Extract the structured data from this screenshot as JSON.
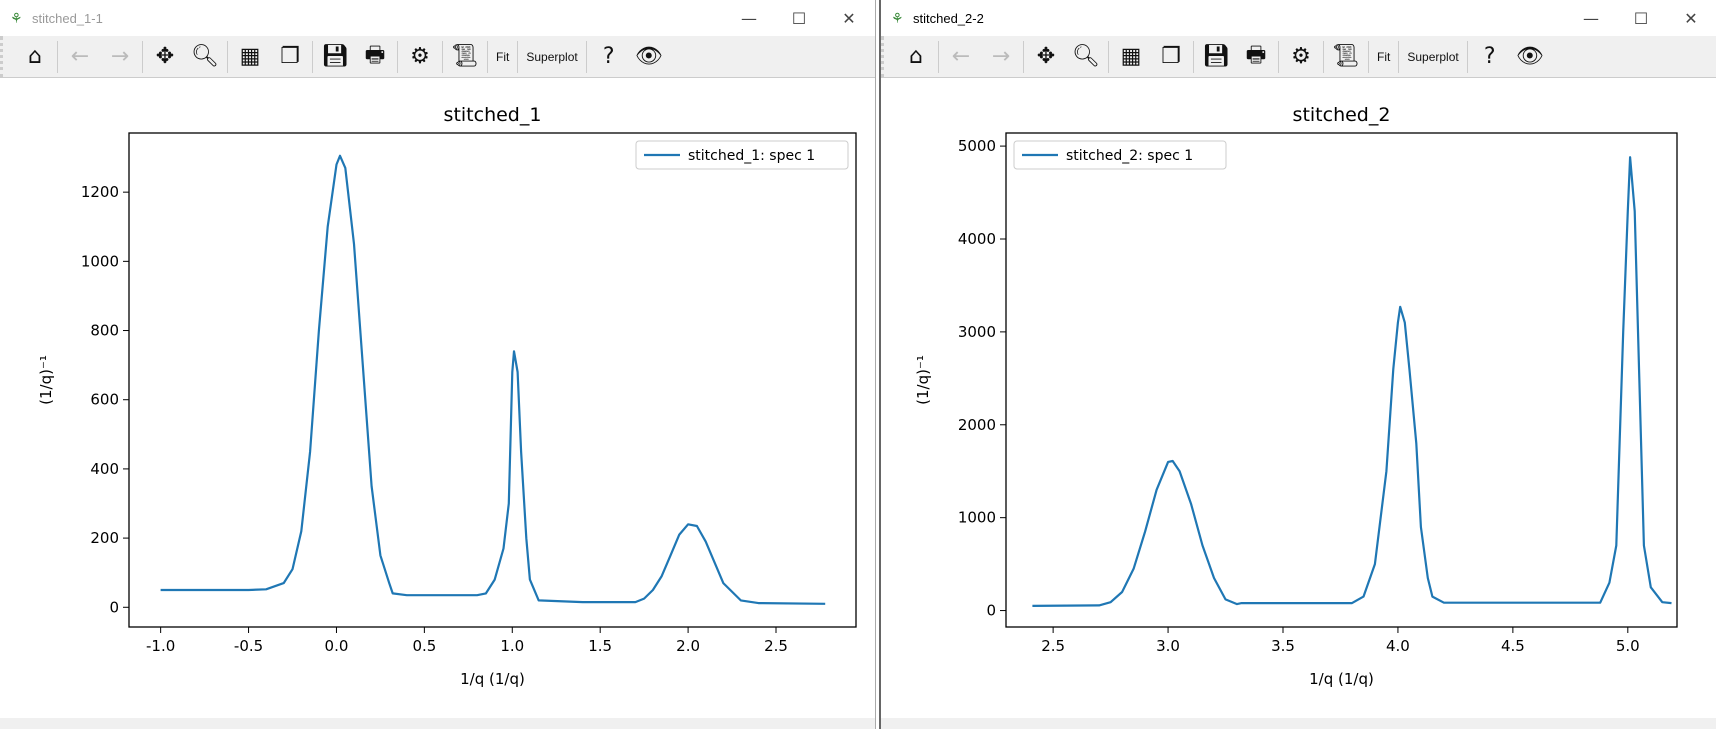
{
  "windows": [
    {
      "title": "stitched_1-1",
      "controls": {
        "minimize": "—",
        "maximize": "☐",
        "close": "✕"
      }
    },
    {
      "title": "stitched_2-2",
      "controls": {
        "minimize": "—",
        "maximize": "☐",
        "close": "✕"
      }
    }
  ],
  "toolbar": {
    "items": [
      {
        "icon": "home-icon",
        "glyph": "⌂"
      },
      {
        "icon": "back-arrow-icon",
        "glyph": "←"
      },
      {
        "icon": "forward-arrow-icon",
        "glyph": "→"
      },
      {
        "icon": "pan-icon",
        "glyph": "✥"
      },
      {
        "icon": "zoom-icon",
        "glyph": "🔍︎"
      },
      {
        "icon": "grid-icon",
        "glyph": "▦"
      },
      {
        "icon": "copy-icon",
        "glyph": "❐"
      },
      {
        "icon": "save-icon",
        "glyph": "💾︎"
      },
      {
        "icon": "print-icon",
        "glyph": "🖶"
      },
      {
        "icon": "settings-gear-icon",
        "glyph": "⚙"
      },
      {
        "icon": "script-dropdown-icon",
        "glyph": "📜︎"
      },
      {
        "label": "Fit"
      },
      {
        "label": "Superplot"
      },
      {
        "icon": "help-icon",
        "glyph": "?"
      },
      {
        "icon": "eye-icon",
        "glyph": "👁︎"
      }
    ]
  },
  "chart_data": [
    {
      "type": "line",
      "title": "stitched_1",
      "xlabel": "1/q (1/q)",
      "ylabel": "(1/q)⁻¹",
      "xlim": [
        -1.18,
        2.955
      ],
      "ylim": [
        -57,
        1371
      ],
      "xticks": [
        "-1.0",
        "-0.5",
        "0.0",
        "0.5",
        "1.0",
        "1.5",
        "2.0",
        "2.5"
      ],
      "yticks": [
        "0",
        "200",
        "400",
        "600",
        "800",
        "1000",
        "1200"
      ],
      "legend": "top-right",
      "grid": false,
      "color": "#1f77b4",
      "series": [
        {
          "name": "stitched_1: spec 1",
          "x": [
            -1.0,
            -0.5,
            -0.4,
            -0.3,
            -0.25,
            -0.2,
            -0.15,
            -0.1,
            -0.05,
            0.0,
            0.02,
            0.05,
            0.1,
            0.15,
            0.2,
            0.25,
            0.3,
            0.32,
            0.4,
            0.8,
            0.85,
            0.9,
            0.95,
            0.98,
            1.0,
            1.01,
            1.03,
            1.05,
            1.08,
            1.1,
            1.15,
            1.4,
            1.7,
            1.75,
            1.8,
            1.85,
            1.9,
            1.95,
            2.0,
            2.05,
            2.1,
            2.15,
            2.2,
            2.3,
            2.4,
            2.78
          ],
          "y": [
            50,
            50,
            52,
            70,
            110,
            220,
            450,
            800,
            1100,
            1280,
            1305,
            1270,
            1050,
            700,
            350,
            150,
            70,
            40,
            35,
            35,
            40,
            80,
            170,
            300,
            680,
            740,
            680,
            450,
            200,
            80,
            20,
            15,
            15,
            25,
            50,
            90,
            150,
            210,
            240,
            235,
            190,
            130,
            70,
            20,
            12,
            10
          ]
        }
      ]
    },
    {
      "type": "line",
      "title": "stitched_2",
      "xlabel": "1/q (1/q)",
      "ylabel": "(1/q)⁻¹",
      "xlim": [
        2.295,
        5.214
      ],
      "ylim": [
        -177,
        5141
      ],
      "xticks": [
        "2.5",
        "3.0",
        "3.5",
        "4.0",
        "4.5",
        "5.0"
      ],
      "yticks": [
        "0",
        "1000",
        "2000",
        "3000",
        "4000",
        "5000"
      ],
      "legend": "top-left",
      "grid": false,
      "color": "#1f77b4",
      "series": [
        {
          "name": "stitched_2: spec 1",
          "x": [
            2.41,
            2.7,
            2.75,
            2.8,
            2.85,
            2.9,
            2.95,
            3.0,
            3.02,
            3.05,
            3.1,
            3.15,
            3.2,
            3.25,
            3.3,
            3.32,
            3.8,
            3.85,
            3.9,
            3.95,
            3.98,
            4.0,
            4.01,
            4.03,
            4.05,
            4.08,
            4.1,
            4.13,
            4.15,
            4.2,
            4.88,
            4.92,
            4.95,
            4.98,
            5.0,
            5.01,
            5.03,
            5.05,
            5.07,
            5.1,
            5.15,
            5.19
          ],
          "y": [
            50,
            55,
            90,
            200,
            450,
            850,
            1300,
            1600,
            1610,
            1500,
            1150,
            700,
            350,
            120,
            70,
            80,
            80,
            150,
            500,
            1500,
            2600,
            3100,
            3270,
            3100,
            2600,
            1800,
            900,
            350,
            150,
            85,
            85,
            300,
            700,
            3000,
            4300,
            4880,
            4300,
            2500,
            700,
            250,
            90,
            80
          ]
        }
      ]
    }
  ]
}
